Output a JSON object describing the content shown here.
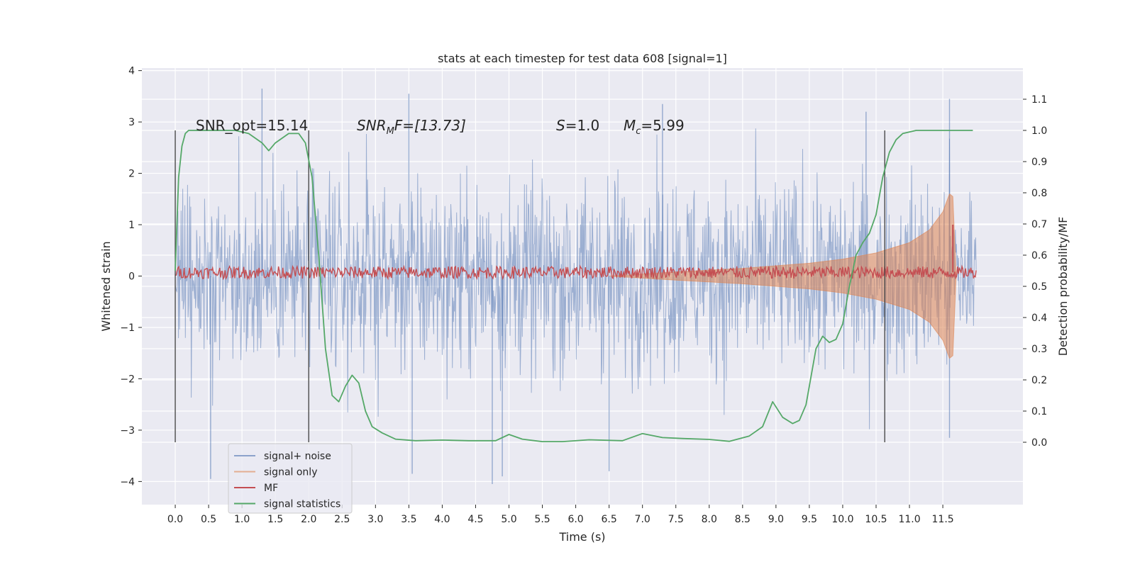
{
  "chart_data": {
    "type": "line",
    "title": "stats at each timestep for test data 608 [signal=1]",
    "xlabel": "Time (s)",
    "ylabel": "Whitened strain",
    "y2label": "Detection probability/MF",
    "xlim": [
      -0.5,
      12.7
    ],
    "ylim": [
      -4.45,
      4.05
    ],
    "y2lim": [
      -0.2,
      1.2
    ],
    "x_ticks": [
      "0.0",
      "0.5",
      "1.0",
      "1.5",
      "2.0",
      "2.5",
      "3.0",
      "3.5",
      "4.0",
      "4.5",
      "5.0",
      "5.5",
      "6.0",
      "6.5",
      "7.0",
      "7.5",
      "8.0",
      "8.5",
      "9.0",
      "9.5",
      "10.0",
      "10.5",
      "11.0",
      "11.5"
    ],
    "y_ticks": [
      "4",
      "3",
      "2",
      "1",
      "0",
      "−1",
      "−2",
      "−3",
      "−4"
    ],
    "y2_ticks": [
      "1.1",
      "1.0",
      "0.9",
      "0.8",
      "0.7",
      "0.6",
      "0.5",
      "0.4",
      "0.3",
      "0.2",
      "0.1",
      "0.0"
    ],
    "grid": true,
    "legend_position": "lower-left",
    "annotations": {
      "snr_opt": "SNR_opt=15.14",
      "snr_mf_prefix": "SNR",
      "snr_mf_sub": "M",
      "snr_mf_rest": "F=[13.73]",
      "s_var": "S",
      "s_val": "=1.0",
      "mc_var": "M",
      "mc_sub": "c",
      "mc_val": "=5.99"
    },
    "vertical_lines_x": [
      0.0,
      2.0,
      10.63
    ],
    "series": [
      {
        "name": "signal+ noise",
        "color": "#4c72b0",
        "style": "dense noise band",
        "x_range": [
          0.0,
          12.0
        ],
        "typical_envelope": 2.2,
        "peak_samples": [
          {
            "x": 0.53,
            "y": -3.95
          },
          {
            "x": 1.3,
            "y": 3.65
          },
          {
            "x": 3.5,
            "y": 3.55
          },
          {
            "x": 3.55,
            "y": -3.85
          },
          {
            "x": 4.75,
            "y": -4.05
          },
          {
            "x": 4.9,
            "y": -3.9
          },
          {
            "x": 6.5,
            "y": -3.8
          },
          {
            "x": 7.3,
            "y": 3.35
          },
          {
            "x": 10.35,
            "y": 3.2
          },
          {
            "x": 11.6,
            "y": 3.45
          },
          {
            "x": 11.6,
            "y": -3.15
          }
        ]
      },
      {
        "name": "signal only",
        "color": "#dd8452",
        "style": "chirp envelope",
        "envelope": [
          [
            6.5,
            0.0
          ],
          [
            7.5,
            0.08
          ],
          [
            8.5,
            0.15
          ],
          [
            9.5,
            0.25
          ],
          [
            10.0,
            0.33
          ],
          [
            10.5,
            0.45
          ],
          [
            11.0,
            0.65
          ],
          [
            11.3,
            0.9
          ],
          [
            11.5,
            1.25
          ],
          [
            11.6,
            1.6
          ],
          [
            11.65,
            1.55
          ],
          [
            11.7,
            0.0
          ]
        ]
      },
      {
        "name": "MF",
        "color": "#c44e52",
        "style": "noisy trace",
        "baseline": 0.07,
        "amplitude": 0.12,
        "x_range": [
          0.0,
          12.0
        ],
        "peak": {
          "x": 11.65,
          "y": 1.0
        }
      },
      {
        "name": "signal statistics",
        "color": "#55a868",
        "style": "smooth curve on right axis",
        "x": [
          0.0,
          0.05,
          0.1,
          0.15,
          0.2,
          0.35,
          0.6,
          0.9,
          1.1,
          1.3,
          1.4,
          1.5,
          1.7,
          1.85,
          1.95,
          2.05,
          2.15,
          2.25,
          2.35,
          2.45,
          2.55,
          2.65,
          2.75,
          2.85,
          2.95,
          3.1,
          3.3,
          3.6,
          4.0,
          4.4,
          4.8,
          5.0,
          5.2,
          5.5,
          5.8,
          6.2,
          6.7,
          7.0,
          7.3,
          7.6,
          8.0,
          8.3,
          8.6,
          8.8,
          8.95,
          9.1,
          9.25,
          9.35,
          9.45,
          9.6,
          9.7,
          9.8,
          9.9,
          10.0,
          10.1,
          10.2,
          10.3,
          10.4,
          10.5,
          10.6,
          10.7,
          10.8,
          10.9,
          11.1,
          11.4,
          11.7,
          11.95
        ],
        "y": [
          0.55,
          0.85,
          0.95,
          0.99,
          1.0,
          1.0,
          1.0,
          1.0,
          0.99,
          0.96,
          0.935,
          0.96,
          0.99,
          0.99,
          0.96,
          0.85,
          0.6,
          0.3,
          0.15,
          0.13,
          0.18,
          0.215,
          0.19,
          0.1,
          0.05,
          0.03,
          0.01,
          0.005,
          0.007,
          0.005,
          0.005,
          0.025,
          0.01,
          0.002,
          0.002,
          0.008,
          0.005,
          0.028,
          0.015,
          0.012,
          0.009,
          0.003,
          0.02,
          0.05,
          0.13,
          0.08,
          0.06,
          0.07,
          0.12,
          0.3,
          0.34,
          0.32,
          0.33,
          0.38,
          0.5,
          0.6,
          0.64,
          0.67,
          0.73,
          0.85,
          0.93,
          0.97,
          0.99,
          1.0,
          1.0,
          1.0,
          1.0
        ]
      }
    ]
  }
}
